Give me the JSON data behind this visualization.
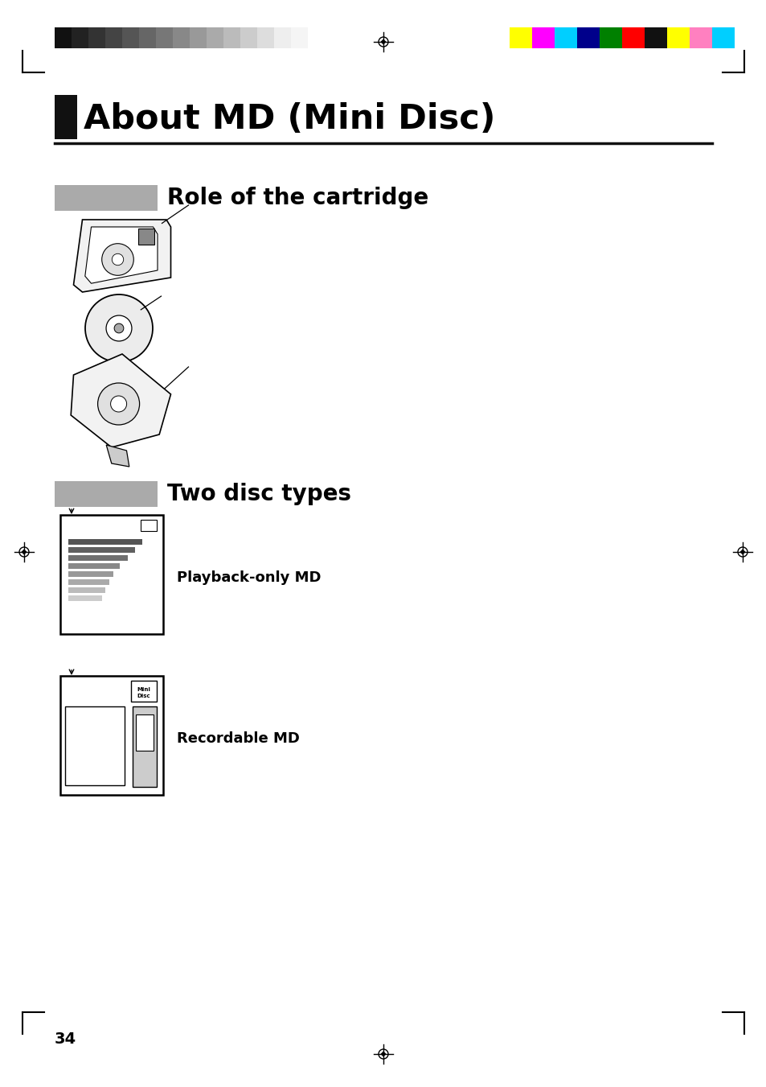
{
  "page_bg": "#ffffff",
  "title_text": "About MD (Mini Disc)",
  "title_box_color": "#111111",
  "title_underline_color": "#111111",
  "section1_header": "Role of the cartridge",
  "section1_header_box": "#aaaaaa",
  "section2_header": "Two disc types",
  "section2_header_box": "#aaaaaa",
  "label1": "Playback-only MD",
  "label2": "Recordable MD",
  "page_number": "34",
  "grayscale_colors": [
    "#111111",
    "#222222",
    "#333333",
    "#444444",
    "#555555",
    "#666666",
    "#777777",
    "#888888",
    "#999999",
    "#aaaaaa",
    "#bbbbbb",
    "#cccccc",
    "#dddddd",
    "#eeeeee",
    "#f5f5f5"
  ],
  "color_bar_colors": [
    "#ffff00",
    "#ff00ff",
    "#00cfff",
    "#00008b",
    "#008000",
    "#ff0000",
    "#111111",
    "#ffff00",
    "#ff80c0",
    "#00cfff"
  ]
}
